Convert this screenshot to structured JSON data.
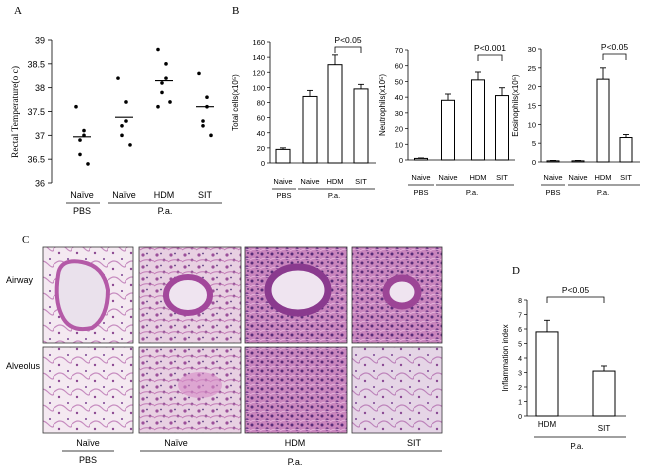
{
  "panel_letters": {
    "a": "A",
    "b": "B",
    "c": "C",
    "d": "D"
  },
  "panel_a": {
    "y_ticks": [
      "39",
      "38.5",
      "38",
      "37.5",
      "37",
      "36.5",
      "36"
    ],
    "groups": {
      "naive1": "Naïve",
      "naive2": "Naïve",
      "hdm": "HDM",
      "sit": "SIT"
    },
    "treatments": {
      "pbs": "PBS",
      "pa": "P.a."
    }
  },
  "panel_b": {
    "significance": {
      "total": "P<0.05",
      "neut": "P<0.001",
      "eos": "P<0.05"
    },
    "total_ticks": [
      "160",
      "140",
      "120",
      "100",
      "80",
      "60",
      "40",
      "20",
      "0"
    ],
    "neut_ticks": [
      "70",
      "60",
      "50",
      "40",
      "30",
      "20",
      "10",
      "0"
    ],
    "eos_ticks": [
      "30",
      "25",
      "20",
      "15",
      "10",
      "5",
      "0"
    ],
    "groups": {
      "naive1": "Naive",
      "naive2": "Naive",
      "hdm": "HDM",
      "sit": "SIT"
    },
    "eos_groups": {
      "naive1": "Naive",
      "naive2": "Naive",
      "hdm": "HDM",
      "sit": "SIT"
    },
    "treatments": {
      "pbs": "PBS",
      "pa": "P.a."
    }
  },
  "panel_c": {
    "rows": {
      "airway": "Airway",
      "alveolus": "Alveolus"
    },
    "columns": {
      "naive1": "Naïve",
      "naive2": "Naïve",
      "hdm": "HDM",
      "sit": "SIT"
    },
    "treatments": {
      "pbs": "PBS",
      "pa": "P.a."
    }
  },
  "panel_d": {
    "significance": "P<0.05",
    "y_ticks": [
      "8",
      "7",
      "6",
      "5",
      "4",
      "3",
      "2",
      "1",
      "0"
    ],
    "groups": {
      "hdm": "HDM",
      "sit": "SIT"
    },
    "treatment": "P.a."
  },
  "chart_data": [
    {
      "panel": "A",
      "type": "scatter",
      "ylabel": "Rectal Temperature(o c)",
      "ylim": [
        36,
        39
      ],
      "categories": [
        "Naïve",
        "Naïve",
        "HDM",
        "SIT"
      ],
      "points": [
        [
          37.6,
          37.1,
          37.0,
          36.9,
          36.6,
          36.4
        ],
        [
          38.2,
          37.7,
          37.3,
          37.2,
          37.0,
          36.8
        ],
        [
          38.8,
          38.5,
          38.2,
          38.1,
          37.9,
          37.7,
          37.6
        ],
        [
          38.3,
          37.8,
          37.6,
          37.3,
          37.2,
          37.0
        ]
      ],
      "means": [
        36.97,
        37.38,
        38.15,
        37.6
      ],
      "group_labels": [
        "PBS",
        "P.a."
      ]
    },
    {
      "panel": "B",
      "type": "bar",
      "ylabel": "Total cells(x10^5)",
      "ylim": [
        0,
        160
      ],
      "categories": [
        "Naive",
        "Naive",
        "HDM",
        "SIT"
      ],
      "values": [
        18,
        88,
        130,
        98
      ],
      "errors": [
        2,
        8,
        13,
        6
      ],
      "annotation": "P<0.05"
    },
    {
      "panel": "B",
      "type": "bar",
      "ylabel": "Neutrophils(x10^5)",
      "ylim": [
        0,
        70
      ],
      "categories": [
        "Naive",
        "Naive",
        "HDM",
        "SIT"
      ],
      "values": [
        1,
        38,
        51,
        41
      ],
      "errors": [
        0.3,
        4,
        5,
        5
      ],
      "annotation": "P<0.001"
    },
    {
      "panel": "B",
      "type": "bar",
      "ylabel": "Eosinophils(x10^5)",
      "ylim": [
        0,
        30
      ],
      "categories": [
        "Naive",
        "Naive",
        "HDM",
        "SIT"
      ],
      "values": [
        0.3,
        0.3,
        22,
        6.5
      ],
      "errors": [
        0.1,
        0.1,
        3,
        0.8
      ],
      "annotation": "P<0.05"
    },
    {
      "panel": "D",
      "type": "bar",
      "ylabel": "Inflammation index",
      "ylim": [
        0,
        8
      ],
      "categories": [
        "HDM",
        "SIT"
      ],
      "values": [
        5.8,
        3.1
      ],
      "errors": [
        0.8,
        0.35
      ],
      "annotation": "P<0.05"
    }
  ]
}
